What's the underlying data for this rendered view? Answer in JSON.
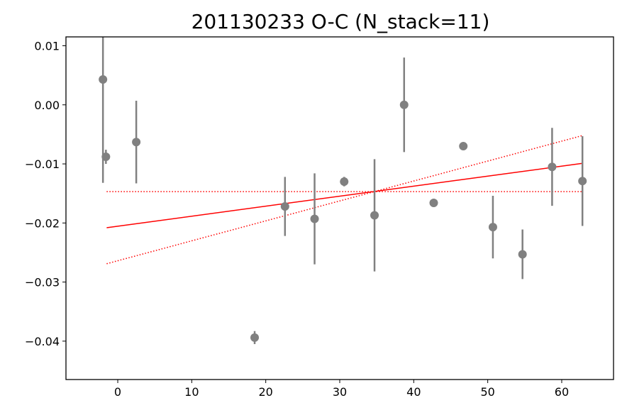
{
  "chart_data": {
    "type": "scatter",
    "title": "201130233 O-C (N_stack=11)",
    "xlabel": "",
    "ylabel": "",
    "xlim": [
      -7,
      67
    ],
    "ylim": [
      -0.0465,
      0.0115
    ],
    "x_ticks": [
      0,
      10,
      20,
      30,
      40,
      50,
      60
    ],
    "x_tick_labels": [
      "0",
      "10",
      "20",
      "30",
      "40",
      "50",
      "60"
    ],
    "y_ticks": [
      0.01,
      0.0,
      -0.01,
      -0.02,
      -0.03,
      -0.04
    ],
    "y_tick_labels": [
      "0.01",
      "0.00",
      "−0.01",
      "−0.02",
      "−0.03",
      "−0.04"
    ],
    "grid": false,
    "legend": "none",
    "series": [
      {
        "kind": "errorbar",
        "color": "#808080",
        "points": [
          {
            "x": -2.0,
            "y": 0.0043,
            "err": 0.0175
          },
          {
            "x": -1.6,
            "y": -0.0088,
            "err": 0.0012
          },
          {
            "x": 2.5,
            "y": -0.0063,
            "err": 0.007
          },
          {
            "x": 18.5,
            "y": -0.0394,
            "err": 0.0011
          },
          {
            "x": 22.6,
            "y": -0.0172,
            "err": 0.005
          },
          {
            "x": 26.6,
            "y": -0.0193,
            "err": 0.0077
          },
          {
            "x": 30.6,
            "y": -0.013,
            "err": 0.0008
          },
          {
            "x": 34.7,
            "y": -0.0187,
            "err": 0.0095
          },
          {
            "x": 38.7,
            "y": 0.0,
            "err": 0.008
          },
          {
            "x": 42.7,
            "y": -0.0166,
            "err": 0.0007
          },
          {
            "x": 46.7,
            "y": -0.007,
            "err": 0.0005
          },
          {
            "x": 50.7,
            "y": -0.0207,
            "err": 0.0053
          },
          {
            "x": 54.7,
            "y": -0.0253,
            "err": 0.0042
          },
          {
            "x": 58.7,
            "y": -0.0105,
            "err": 0.0066
          },
          {
            "x": 62.8,
            "y": -0.0129,
            "err": 0.0076
          }
        ]
      },
      {
        "kind": "line",
        "color": "#ff0000",
        "style": "solid",
        "x": [
          -1.5,
          62.8
        ],
        "y": [
          -0.0208,
          -0.0099
        ]
      },
      {
        "kind": "line",
        "color": "#ff0000",
        "style": "dotted",
        "x": [
          -1.5,
          62.8
        ],
        "y": [
          -0.0269,
          -0.0052
        ]
      },
      {
        "kind": "line",
        "color": "#ff0000",
        "style": "dotted",
        "x": [
          -1.5,
          62.8
        ],
        "y": [
          -0.0147,
          -0.0147
        ]
      }
    ]
  }
}
